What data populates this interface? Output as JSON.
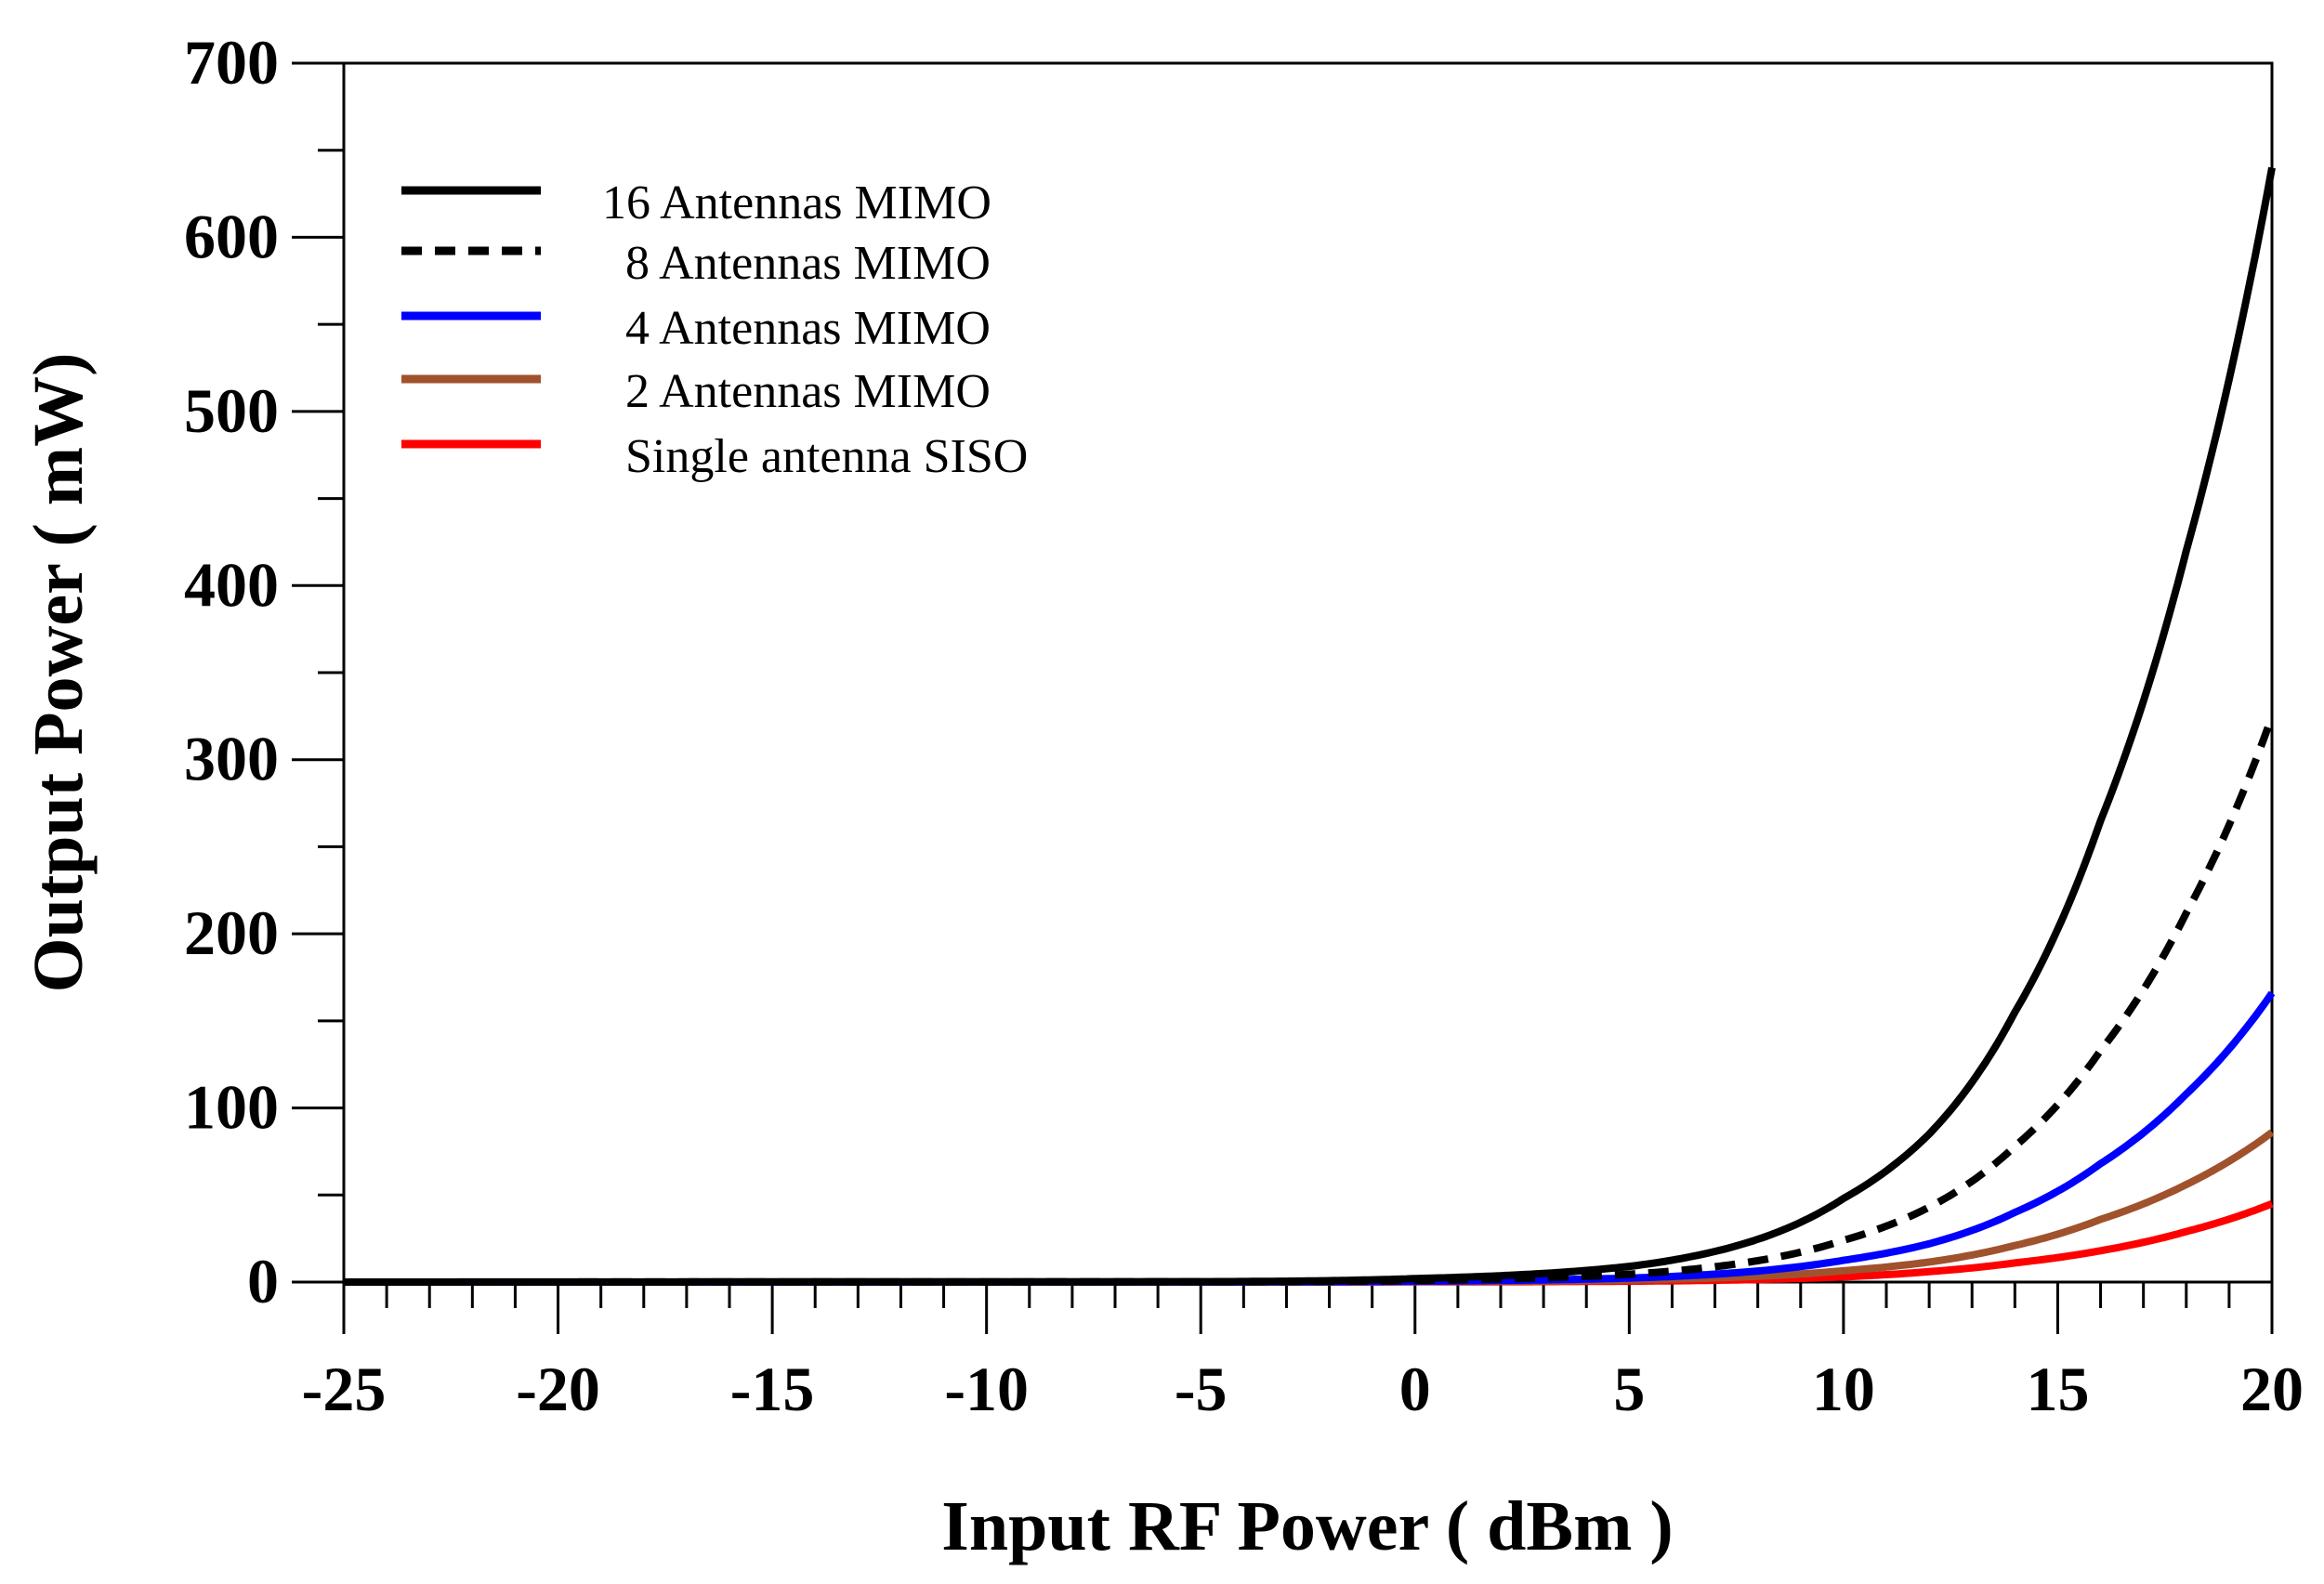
{
  "chart_data": {
    "type": "line",
    "title": "",
    "xlabel": "Input RF Power ( dBm )",
    "ylabel": "Output Power ( mW)",
    "xlim": [
      -25,
      20
    ],
    "ylim": [
      0,
      700
    ],
    "xticks": [
      -25,
      -20,
      -15,
      -10,
      -5,
      0,
      5,
      10,
      15,
      20
    ],
    "xtick_labels": [
      "-25",
      "-20",
      "-15",
      "-10",
      "-5",
      "0",
      "5",
      "10",
      "15",
      "20"
    ],
    "yticks": [
      0,
      100,
      200,
      300,
      400,
      500,
      600,
      700
    ],
    "ytick_labels": [
      "0",
      "100",
      "200",
      "300",
      "400",
      "500",
      "600",
      "700"
    ],
    "grid": false,
    "legend_position": "top-left",
    "series": [
      {
        "name": "16 Antennas MIMO",
        "color": "#000000",
        "dash": "solid",
        "x": [
          -25,
          -5,
          0,
          5,
          10,
          12,
          14,
          16,
          18,
          20
        ],
        "y": [
          0,
          0.2,
          2,
          9,
          48,
          85,
          155,
          265,
          420,
          640
        ]
      },
      {
        "name": "8 Antennas MIMO",
        "color": "#000000",
        "dash": "dashed",
        "x": [
          -25,
          -5,
          0,
          5,
          10,
          12,
          14,
          16,
          18,
          20
        ],
        "y": [
          0,
          0.1,
          1,
          4.5,
          24,
          43,
          78,
          133,
          212,
          325
        ]
      },
      {
        "name": "4 Antennas MIMO",
        "color": "#0000ff",
        "dash": "solid",
        "x": [
          -25,
          -5,
          0,
          5,
          10,
          12,
          14,
          16,
          18,
          20
        ],
        "y": [
          0,
          0.05,
          0.5,
          2.3,
          12.5,
          22,
          40,
          68,
          108,
          166
        ]
      },
      {
        "name": "2 Antennas MIMO",
        "color": "#a0522d",
        "dash": "solid",
        "x": [
          -25,
          -5,
          0,
          5,
          10,
          12,
          14,
          16,
          18,
          20
        ],
        "y": [
          0,
          0.03,
          0.25,
          1.2,
          6.5,
          11.5,
          21,
          36,
          56,
          86
        ]
      },
      {
        "name": "Single antenna SISO",
        "color": "#ff0000",
        "dash": "solid",
        "x": [
          -25,
          -5,
          0,
          5,
          10,
          12,
          14,
          16,
          18,
          20
        ],
        "y": [
          0,
          0.01,
          0.1,
          0.5,
          3,
          6,
          11,
          18,
          29,
          45
        ]
      }
    ]
  }
}
